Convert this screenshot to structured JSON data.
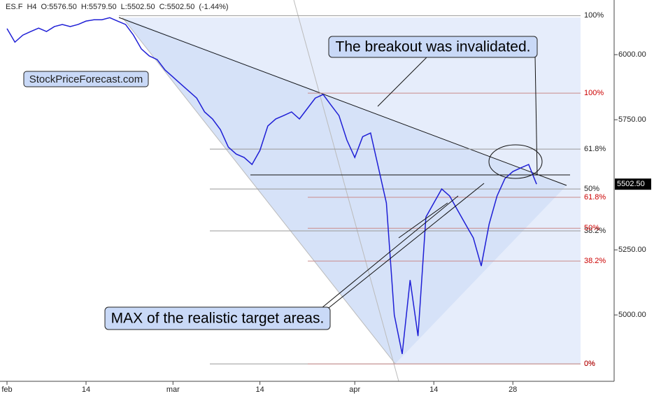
{
  "header": [
    "ES.F",
    "H4",
    "O:5576.50",
    "H:5579.50",
    "L:5502.50",
    "C:5502.50",
    "(-1.44%)"
  ],
  "annotations": {
    "site": "StockPriceForecast.com",
    "breakout": "The breakout was invalidated.",
    "target": "MAX of the realistic target areas."
  },
  "chart_data": {
    "type": "line",
    "categories": [
      "feb",
      null,
      null,
      null,
      null,
      null,
      null,
      null,
      null,
      null,
      "14",
      null,
      null,
      null,
      null,
      null,
      null,
      null,
      null,
      null,
      null,
      "mar",
      null,
      null,
      null,
      null,
      null,
      null,
      null,
      null,
      null,
      null,
      "14",
      null,
      null,
      null,
      null,
      null,
      null,
      null,
      null,
      null,
      null,
      null,
      "apr",
      null,
      null,
      null,
      null,
      null,
      null,
      null,
      null,
      null,
      "14",
      null,
      null,
      null,
      null,
      null,
      null,
      null,
      null,
      null,
      "28",
      null,
      null,
      null
    ],
    "series": [
      {
        "name": "ES.F",
        "color": "#1f1fd6",
        "values": [
          6100,
          6048,
          6075,
          6089,
          6102,
          6089,
          6108,
          6116,
          6108,
          6116,
          6129,
          6134,
          6134,
          6142,
          6129,
          6116,
          6075,
          6022,
          5995,
          5981,
          5941,
          5914,
          5887,
          5860,
          5833,
          5780,
          5753,
          5712,
          5645,
          5618,
          5605,
          5578,
          5632,
          5726,
          5753,
          5766,
          5780,
          5753,
          5793,
          5833,
          5847,
          5806,
          5766,
          5672,
          5605,
          5685,
          5699,
          5565,
          5430,
          5000,
          4850,
          5134,
          4919,
          5376,
          5430,
          5484,
          5457,
          5403,
          5349,
          5296,
          5188,
          5349,
          5457,
          5524,
          5551,
          5565,
          5578,
          5502.5
        ]
      }
    ],
    "ylim": [
      4745,
      6210
    ],
    "yticks": [
      {
        "value": 5000,
        "label": "5000.00"
      },
      {
        "value": 5250,
        "label": "5250.00"
      },
      {
        "value": 5750,
        "label": "5750.00"
      },
      {
        "value": 6000,
        "label": "6000.00"
      }
    ],
    "last_price": {
      "value": 5502.5,
      "label": "5502.50"
    },
    "fib_black": [
      {
        "value": 6150,
        "label": "100%"
      },
      {
        "value": 5637,
        "label": "61.8%"
      },
      {
        "value": 5484,
        "label": "50%"
      },
      {
        "value": 5323,
        "label": "38.2%"
      },
      {
        "value": 4812,
        "label": "0%"
      }
    ],
    "fib_red": [
      {
        "value": 5852,
        "label": "100%"
      },
      {
        "value": 5452,
        "label": "61.8%"
      },
      {
        "value": 5333,
        "label": "50%"
      },
      {
        "value": 5207,
        "label": "38.2%"
      },
      {
        "value": 4812,
        "label": "0%"
      }
    ]
  }
}
